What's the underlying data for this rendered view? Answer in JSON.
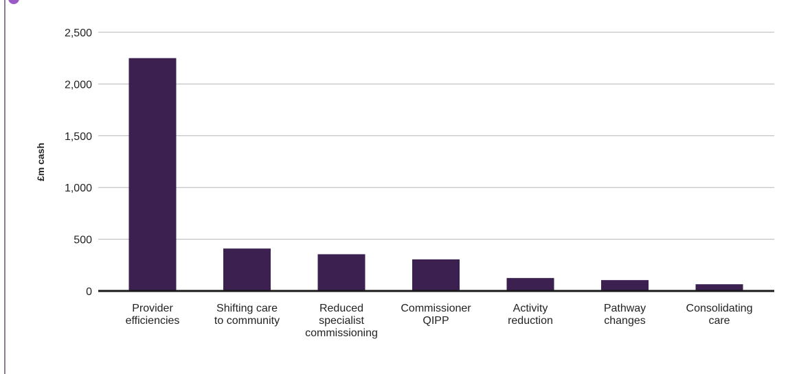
{
  "chart_data": {
    "type": "bar",
    "title": "",
    "xlabel": "",
    "ylabel": "£m cash",
    "ylim": [
      0,
      2500
    ],
    "yticks": [
      0,
      500,
      1000,
      1500,
      2000,
      2500
    ],
    "ytick_labels": [
      "0",
      "500",
      "1,000",
      "1,500",
      "2,000",
      "2,500"
    ],
    "grid": true,
    "categories": [
      [
        "Provider",
        "efficiencies"
      ],
      [
        "Shifting care",
        "to community"
      ],
      [
        "Reduced",
        "specialist",
        "commissioning"
      ],
      [
        "Commissioner",
        "QIPP"
      ],
      [
        "Activity",
        "reduction"
      ],
      [
        "Pathway",
        "changes"
      ],
      [
        "Consolidating",
        "care"
      ]
    ],
    "values": [
      2250,
      410,
      355,
      305,
      125,
      105,
      65
    ],
    "colors": {
      "bar": "#3b2050",
      "grid": "#b5b5b5",
      "axis": "#1a1a1a",
      "frame": "#8a7a98",
      "title_dot": "#9b59c6"
    }
  }
}
